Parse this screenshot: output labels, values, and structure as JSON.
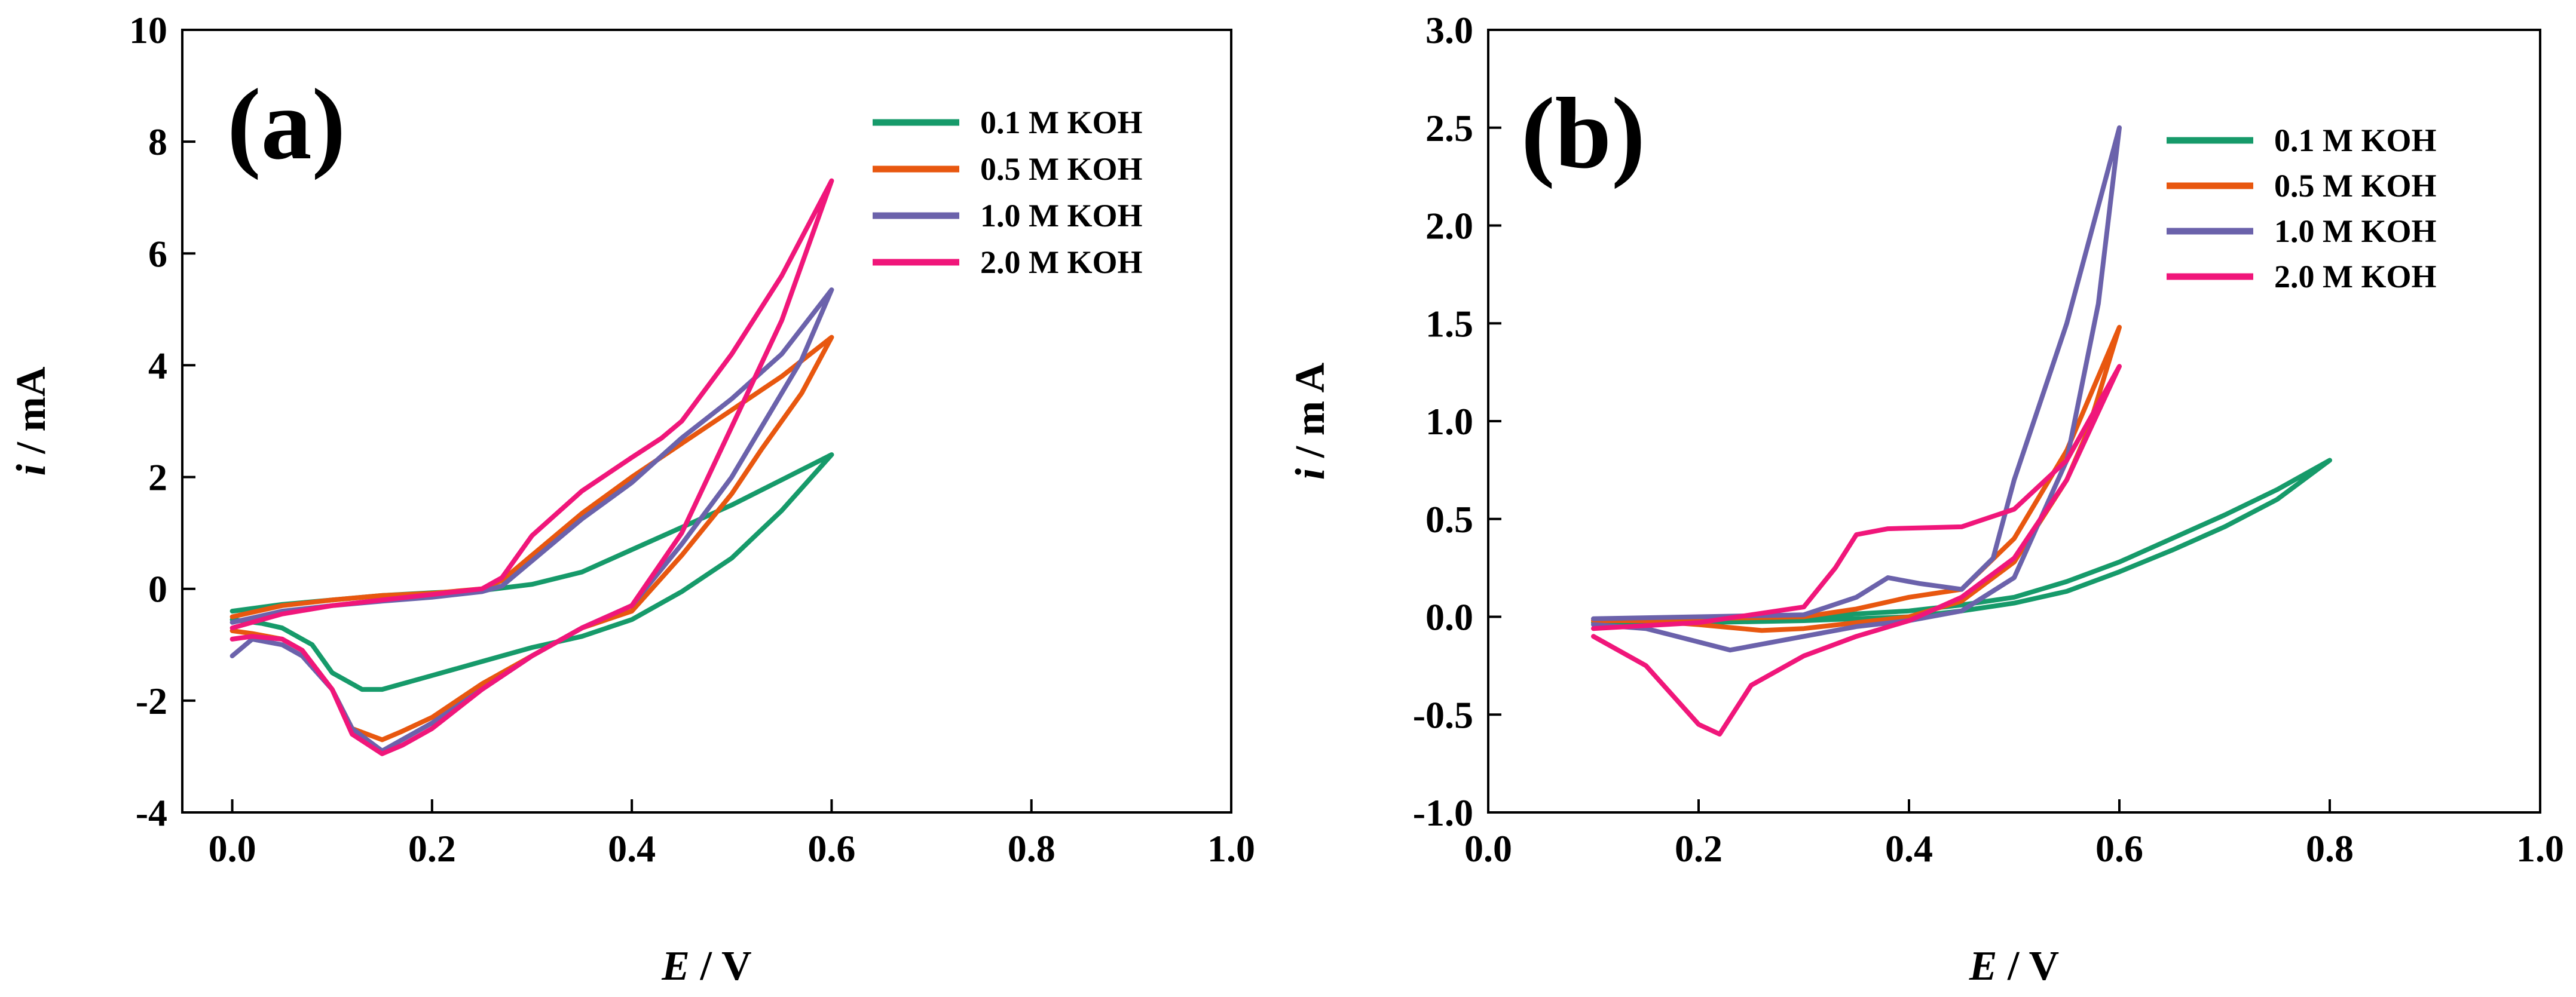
{
  "chart_data": [
    {
      "type": "line",
      "panel_label": "(a)",
      "title": "",
      "xlabel": {
        "italic": "E",
        "rest": " / V"
      },
      "ylabel": {
        "italic": "i",
        "rest": " / mA"
      },
      "xlim": [
        -0.05,
        1.0
      ],
      "ylim": [
        -4,
        10
      ],
      "xticks": [
        "0.0",
        "0.2",
        "0.4",
        "0.6",
        "0.8",
        "1.0"
      ],
      "yticks": [
        "-4",
        "-2",
        "0",
        "2",
        "4",
        "6",
        "8",
        "10"
      ],
      "legend_position": "top-right",
      "series": [
        {
          "name": "0.1 M KOH",
          "color": "#169a6a",
          "x": [
            0.0,
            0.05,
            0.1,
            0.15,
            0.2,
            0.25,
            0.3,
            0.35,
            0.4,
            0.45,
            0.5,
            0.55,
            0.6,
            0.55,
            0.5,
            0.45,
            0.4,
            0.35,
            0.3,
            0.25,
            0.2,
            0.15,
            0.13,
            0.1,
            0.08,
            0.05,
            0.03,
            0.0
          ],
          "y": [
            -0.4,
            -0.28,
            -0.2,
            -0.12,
            -0.07,
            -0.03,
            0.08,
            0.3,
            0.7,
            1.1,
            1.5,
            1.95,
            2.4,
            1.4,
            0.55,
            -0.05,
            -0.55,
            -0.85,
            -1.05,
            -1.3,
            -1.55,
            -1.8,
            -1.8,
            -1.5,
            -1.0,
            -0.7,
            -0.62,
            -0.55
          ]
        },
        {
          "name": "0.5 M KOH",
          "color": "#e8570f",
          "x": [
            0.0,
            0.05,
            0.1,
            0.15,
            0.2,
            0.25,
            0.27,
            0.3,
            0.35,
            0.4,
            0.45,
            0.5,
            0.55,
            0.6,
            0.57,
            0.53,
            0.5,
            0.45,
            0.4,
            0.35,
            0.3,
            0.25,
            0.2,
            0.17,
            0.15,
            0.12,
            0.1,
            0.07,
            0.05,
            0.02,
            0.0
          ],
          "y": [
            -0.5,
            -0.3,
            -0.2,
            -0.12,
            -0.08,
            0.0,
            0.15,
            0.6,
            1.35,
            2.0,
            2.6,
            3.2,
            3.8,
            4.5,
            3.5,
            2.5,
            1.7,
            0.6,
            -0.4,
            -0.7,
            -1.2,
            -1.7,
            -2.3,
            -2.55,
            -2.7,
            -2.5,
            -1.8,
            -1.1,
            -0.9,
            -0.8,
            -0.75
          ]
        },
        {
          "name": "1.0 M KOH",
          "color": "#6b62ab",
          "x": [
            0.0,
            0.05,
            0.1,
            0.15,
            0.2,
            0.25,
            0.27,
            0.3,
            0.35,
            0.4,
            0.45,
            0.5,
            0.55,
            0.6,
            0.57,
            0.53,
            0.5,
            0.45,
            0.4,
            0.35,
            0.3,
            0.25,
            0.2,
            0.17,
            0.15,
            0.12,
            0.1,
            0.07,
            0.05,
            0.02,
            0.0
          ],
          "y": [
            -0.6,
            -0.4,
            -0.3,
            -0.22,
            -0.15,
            -0.05,
            0.05,
            0.5,
            1.25,
            1.9,
            2.7,
            3.4,
            4.2,
            5.35,
            4.1,
            2.9,
            2.0,
            0.8,
            -0.3,
            -0.7,
            -1.2,
            -1.8,
            -2.4,
            -2.7,
            -2.9,
            -2.5,
            -1.8,
            -1.2,
            -1.0,
            -0.9,
            -1.2
          ]
        },
        {
          "name": "2.0 M KOH",
          "color": "#f0167a",
          "x": [
            0.0,
            0.05,
            0.1,
            0.15,
            0.2,
            0.25,
            0.27,
            0.3,
            0.35,
            0.4,
            0.43,
            0.45,
            0.5,
            0.55,
            0.6,
            0.57,
            0.55,
            0.5,
            0.45,
            0.4,
            0.35,
            0.3,
            0.25,
            0.2,
            0.17,
            0.15,
            0.12,
            0.1,
            0.07,
            0.05,
            0.02,
            0.0
          ],
          "y": [
            -0.7,
            -0.45,
            -0.3,
            -0.2,
            -0.1,
            0.0,
            0.2,
            0.95,
            1.75,
            2.35,
            2.7,
            3.0,
            4.2,
            5.6,
            7.3,
            5.8,
            4.8,
            2.9,
            1.0,
            -0.3,
            -0.7,
            -1.2,
            -1.8,
            -2.5,
            -2.8,
            -2.95,
            -2.6,
            -1.8,
            -1.1,
            -0.9,
            -0.85,
            -0.9
          ]
        }
      ]
    },
    {
      "type": "line",
      "panel_label": "(b)",
      "title": "",
      "xlabel": {
        "italic": "E",
        "rest": " / V"
      },
      "ylabel": {
        "italic": "i",
        "rest": " / m A"
      },
      "xlim": [
        0.0,
        1.0
      ],
      "ylim": [
        -1.0,
        3.0
      ],
      "xticks": [
        "0.0",
        "0.2",
        "0.4",
        "0.6",
        "0.8",
        "1.0"
      ],
      "yticks": [
        "-1.0",
        "-0.5",
        "0.0",
        "0.5",
        "1.0",
        "1.5",
        "2.0",
        "2.5",
        "3.0"
      ],
      "legend_position": "top-right",
      "series": [
        {
          "name": "0.1 M KOH",
          "color": "#169a6a",
          "x": [
            0.1,
            0.2,
            0.3,
            0.4,
            0.45,
            0.5,
            0.55,
            0.6,
            0.65,
            0.7,
            0.75,
            0.8,
            0.75,
            0.7,
            0.65,
            0.6,
            0.55,
            0.5,
            0.45,
            0.4,
            0.3,
            0.2,
            0.1
          ],
          "y": [
            -0.02,
            -0.01,
            0.0,
            0.03,
            0.06,
            0.1,
            0.18,
            0.28,
            0.4,
            0.52,
            0.65,
            0.8,
            0.6,
            0.46,
            0.34,
            0.23,
            0.13,
            0.07,
            0.03,
            0.0,
            -0.02,
            -0.03,
            -0.03
          ]
        },
        {
          "name": "0.5 M KOH",
          "color": "#e8570f",
          "x": [
            0.1,
            0.2,
            0.3,
            0.35,
            0.4,
            0.45,
            0.5,
            0.55,
            0.6,
            0.57,
            0.55,
            0.5,
            0.45,
            0.4,
            0.35,
            0.3,
            0.26,
            0.2,
            0.15,
            0.1
          ],
          "y": [
            -0.02,
            -0.01,
            0.0,
            0.04,
            0.1,
            0.14,
            0.4,
            0.85,
            1.48,
            0.95,
            0.7,
            0.28,
            0.08,
            0.0,
            -0.03,
            -0.06,
            -0.07,
            -0.04,
            -0.02,
            -0.02
          ]
        },
        {
          "name": "1.0 M KOH",
          "color": "#6b62ab",
          "x": [
            0.1,
            0.2,
            0.3,
            0.35,
            0.38,
            0.41,
            0.45,
            0.48,
            0.5,
            0.55,
            0.6,
            0.58,
            0.55,
            0.5,
            0.45,
            0.4,
            0.35,
            0.3,
            0.23,
            0.15,
            0.1
          ],
          "y": [
            -0.01,
            0.0,
            0.01,
            0.1,
            0.2,
            0.17,
            0.14,
            0.3,
            0.7,
            1.5,
            2.5,
            1.6,
            0.8,
            0.2,
            0.03,
            -0.02,
            -0.05,
            -0.1,
            -0.17,
            -0.06,
            -0.04
          ]
        },
        {
          "name": "2.0 M KOH",
          "color": "#f0167a",
          "x": [
            0.1,
            0.2,
            0.3,
            0.33,
            0.35,
            0.38,
            0.45,
            0.5,
            0.55,
            0.6,
            0.55,
            0.5,
            0.45,
            0.4,
            0.35,
            0.3,
            0.25,
            0.22,
            0.2,
            0.15,
            0.1
          ],
          "y": [
            -0.06,
            -0.03,
            0.05,
            0.25,
            0.42,
            0.45,
            0.46,
            0.55,
            0.8,
            1.28,
            0.7,
            0.3,
            0.1,
            -0.02,
            -0.1,
            -0.2,
            -0.35,
            -0.6,
            -0.55,
            -0.25,
            -0.1
          ]
        }
      ]
    }
  ]
}
